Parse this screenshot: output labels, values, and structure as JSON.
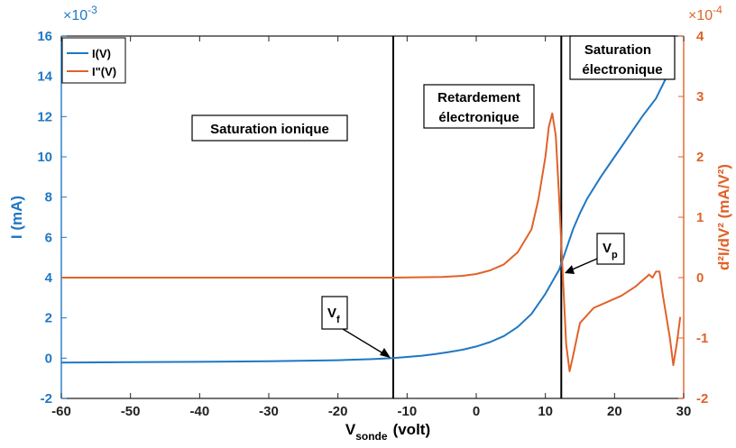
{
  "chart_data": {
    "type": "line",
    "x": {
      "label_main": "V",
      "label_sub": "sonde",
      "label_unit": "(volt)",
      "lim": [
        -60,
        30
      ],
      "ticks": [
        -60,
        -50,
        -40,
        -30,
        -20,
        -10,
        0,
        10,
        20,
        30
      ],
      "tick_labels": [
        "-60",
        "-50",
        "-40",
        "-30",
        "-20",
        "-10",
        "0",
        "10",
        "20",
        "30"
      ]
    },
    "y_left": {
      "label": "I (mA)",
      "lim": [
        -2,
        16
      ],
      "ticks": [
        -2,
        0,
        2,
        4,
        6,
        8,
        10,
        12,
        14,
        16
      ],
      "tick_labels": [
        "-2",
        "0",
        "2",
        "4",
        "6",
        "8",
        "10",
        "12",
        "14",
        "16"
      ],
      "multiplier_base": "×10",
      "multiplier_exp": "-3",
      "color": "#1f77c4"
    },
    "y_right": {
      "label": "d²I/dV² (mA/V²)",
      "lim": [
        -2,
        4
      ],
      "ticks": [
        -2,
        -1,
        0,
        1,
        2,
        3,
        4
      ],
      "tick_labels": [
        "-2",
        "-1",
        "0",
        "1",
        "2",
        "3",
        "4"
      ],
      "multiplier_base": "×10",
      "multiplier_exp": "-4",
      "color": "#e0622a"
    },
    "series": [
      {
        "name": "I(V)",
        "axis": "left",
        "color": "#1f77c4",
        "points": [
          [
            -60,
            -0.22
          ],
          [
            -50,
            -0.2
          ],
          [
            -40,
            -0.18
          ],
          [
            -30,
            -0.15
          ],
          [
            -20,
            -0.1
          ],
          [
            -15,
            -0.05
          ],
          [
            -12,
            0.0
          ],
          [
            -10,
            0.06
          ],
          [
            -8,
            0.12
          ],
          [
            -6,
            0.2
          ],
          [
            -4,
            0.3
          ],
          [
            -2,
            0.42
          ],
          [
            0,
            0.58
          ],
          [
            2,
            0.8
          ],
          [
            4,
            1.1
          ],
          [
            6,
            1.55
          ],
          [
            8,
            2.2
          ],
          [
            10,
            3.2
          ],
          [
            11,
            3.8
          ],
          [
            12,
            4.4
          ],
          [
            13,
            5.4
          ],
          [
            14,
            6.4
          ],
          [
            15,
            7.2
          ],
          [
            16,
            7.9
          ],
          [
            18,
            9.0
          ],
          [
            20,
            10.0
          ],
          [
            22,
            11.0
          ],
          [
            24,
            12.0
          ],
          [
            26,
            12.9
          ],
          [
            28,
            14.3
          ]
        ]
      },
      {
        "name": "I\"(V)",
        "axis": "right",
        "color": "#e0622a",
        "points": [
          [
            -60,
            0.0
          ],
          [
            -40,
            0.0
          ],
          [
            -20,
            0.0
          ],
          [
            -12,
            0.0
          ],
          [
            -5,
            0.01
          ],
          [
            -2,
            0.03
          ],
          [
            0,
            0.06
          ],
          [
            2,
            0.12
          ],
          [
            4,
            0.22
          ],
          [
            6,
            0.42
          ],
          [
            8,
            0.8
          ],
          [
            9,
            1.3
          ],
          [
            10,
            2.0
          ],
          [
            10.5,
            2.5
          ],
          [
            11,
            2.72
          ],
          [
            11.5,
            2.35
          ],
          [
            12,
            1.3
          ],
          [
            12.5,
            0.1
          ],
          [
            13,
            -1.1
          ],
          [
            13.5,
            -1.55
          ],
          [
            14,
            -1.3
          ],
          [
            15,
            -0.75
          ],
          [
            17,
            -0.5
          ],
          [
            19,
            -0.4
          ],
          [
            21,
            -0.3
          ],
          [
            23,
            -0.15
          ],
          [
            24,
            -0.05
          ],
          [
            25,
            0.05
          ],
          [
            25.5,
            0.0
          ],
          [
            26,
            0.1
          ],
          [
            26.5,
            0.1
          ],
          [
            27,
            -0.3
          ],
          [
            28,
            -1.0
          ],
          [
            28.5,
            -1.45
          ],
          [
            29,
            -1.1
          ],
          [
            29.5,
            -0.65
          ]
        ]
      }
    ],
    "vlines": [
      -12,
      12.3
    ],
    "annotations": {
      "region_ionic": "Saturation ionique",
      "region_retard_1": "Retardement",
      "region_retard_2": "électronique",
      "region_elec_1": "Saturation",
      "region_elec_2": "électronique",
      "vf_main": "V",
      "vf_sub": "f",
      "vp_main": "V",
      "vp_sub": "p"
    },
    "legend_position": "top-left",
    "grid": false
  }
}
